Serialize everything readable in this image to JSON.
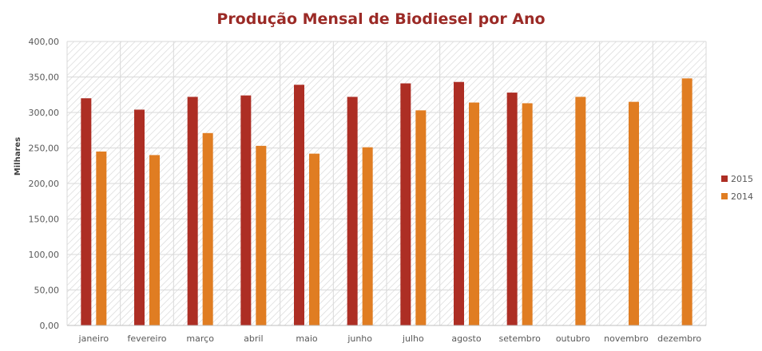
{
  "chart_data": {
    "type": "bar",
    "title": "Produção Mensal de Biodiesel por Ano",
    "ylabel": "Milhares",
    "xlabel": "",
    "ylim": [
      0,
      400
    ],
    "ytick_values": [
      0,
      50,
      100,
      150,
      200,
      250,
      300,
      350,
      400
    ],
    "ytick_labels": [
      "0,00",
      "50,00",
      "100,00",
      "150,00",
      "200,00",
      "250,00",
      "300,00",
      "350,00",
      "400,00"
    ],
    "categories": [
      "janeiro",
      "fevereiro",
      "março",
      "abril",
      "maio",
      "junho",
      "julho",
      "agosto",
      "setembro",
      "outubro",
      "novembro",
      "dezembro"
    ],
    "series": [
      {
        "name": "2015",
        "color": "#ad2e24",
        "values": [
          320,
          304,
          322,
          324,
          339,
          322,
          341,
          343,
          328,
          null,
          null,
          null
        ]
      },
      {
        "name": "2014",
        "color": "#e07d22",
        "values": [
          245,
          240,
          271,
          253,
          242,
          251,
          303,
          314,
          313,
          322,
          315,
          348
        ]
      }
    ],
    "grid": true,
    "legend_position": "right"
  }
}
